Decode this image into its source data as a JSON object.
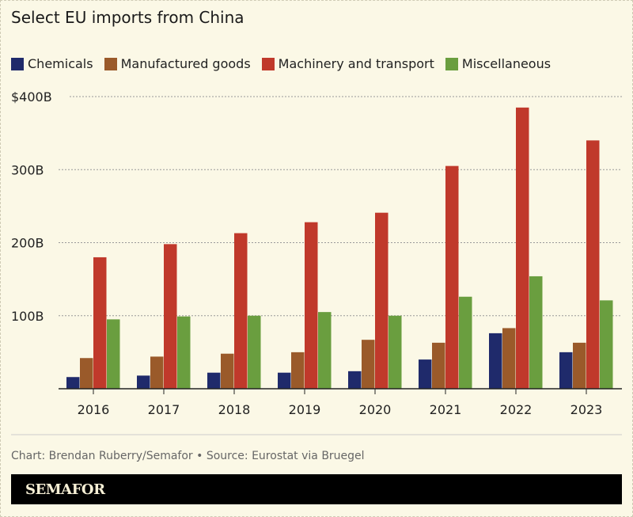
{
  "chart_data": {
    "type": "bar",
    "title": "Select EU imports from China",
    "categories": [
      "2016",
      "2017",
      "2018",
      "2019",
      "2020",
      "2021",
      "2022",
      "2023"
    ],
    "series": [
      {
        "name": "Chemicals",
        "color": "#1f2a6b",
        "values": [
          16,
          18,
          22,
          22,
          24,
          40,
          76,
          50
        ]
      },
      {
        "name": "Manufactured goods",
        "color": "#9a5a2a",
        "values": [
          42,
          44,
          48,
          50,
          67,
          63,
          83,
          63
        ]
      },
      {
        "name": "Machinery and transport",
        "color": "#c0392b",
        "values": [
          180,
          198,
          213,
          228,
          241,
          305,
          385,
          340
        ]
      },
      {
        "name": "Miscellaneous",
        "color": "#6a9e3f",
        "values": [
          95,
          99,
          100,
          105,
          100,
          126,
          154,
          121
        ]
      }
    ],
    "yticks": [
      {
        "v": 100,
        "label": "100B"
      },
      {
        "v": 200,
        "label": "200B"
      },
      {
        "v": 300,
        "label": "300B"
      },
      {
        "v": 400,
        "label": "$400B"
      }
    ],
    "ylim": [
      0,
      400
    ],
    "xlabel": "",
    "ylabel": "",
    "grid": true,
    "legend": "top-left"
  },
  "credit": "Chart: Brendan Ruberry/Semafor • Source: Eurostat via Bruegel",
  "logo": "SEMAFOR"
}
